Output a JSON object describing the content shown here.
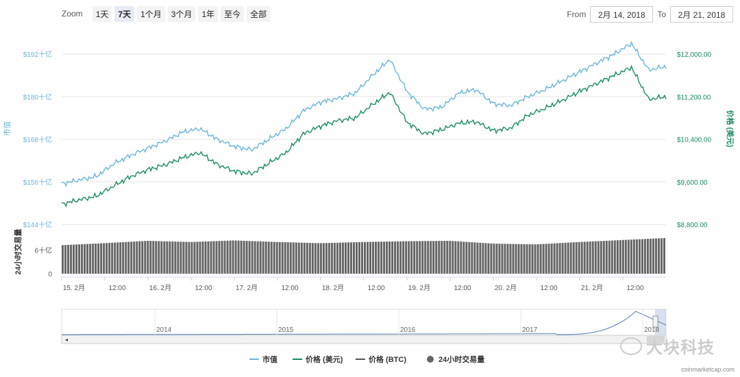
{
  "zoom": {
    "label": "Zoom",
    "buttons": [
      "1天",
      "7天",
      "1个月",
      "3个月",
      "1年",
      "至今",
      "全部"
    ],
    "active_index": 1
  },
  "range": {
    "from_label": "From",
    "from_value": "2月 14, 2018",
    "to_label": "To",
    "to_value": "2月 21, 2018"
  },
  "watermark": {
    "text": "大块科技",
    "icon": "wechat-icon"
  },
  "credit": "coinmarketcap.com",
  "colors": {
    "market_cap": "#6db3d6",
    "price_usd": "#1b8a60",
    "price_btc": "#555555",
    "volume": "#666666",
    "grid": "#e6e6e6",
    "navigator": "#4d79b3"
  },
  "chart_data": {
    "type": "line",
    "title": "",
    "x_ticks": [
      "15. 2月",
      "12:00",
      "16. 2月",
      "12:00",
      "17. 2月",
      "12:00",
      "18. 2月",
      "12:00",
      "19. 2月",
      "12:00",
      "20. 2月",
      "12:00",
      "21. 2月",
      "12:00"
    ],
    "x_range_days": [
      0,
      7
    ],
    "left_axis": {
      "label": "市值",
      "ticks": [
        "$144十亿",
        "$156十亿",
        "$168十亿",
        "$180十亿",
        "$192十亿"
      ],
      "range_billion": [
        144,
        192
      ]
    },
    "right_axis": {
      "label": "价格 (美元)",
      "ticks": [
        "$8,800.00",
        "$9,600.00",
        "$10,400.00",
        "$11,200.00",
        "$12,000.00"
      ],
      "range_usd": [
        8800,
        12000
      ]
    },
    "volume_axis": {
      "label": "24小时交易量",
      "ticks": [
        "0",
        "6十亿"
      ],
      "range_billion": [
        0,
        9.5
      ]
    },
    "series": [
      {
        "name": "市值",
        "axis": "left",
        "unit": "十亿美元",
        "x": [
          0,
          0.2,
          0.4,
          0.6,
          0.8,
          1.0,
          1.2,
          1.4,
          1.6,
          1.8,
          2.0,
          2.2,
          2.4,
          2.6,
          2.8,
          3.0,
          3.2,
          3.4,
          3.6,
          3.8,
          4.0,
          4.2,
          4.4,
          4.6,
          4.8,
          5.0,
          5.2,
          5.4,
          5.6,
          5.8,
          6.0,
          6.2,
          6.4,
          6.6,
          6.8,
          7.0
        ],
        "values": [
          155.5,
          156.5,
          157.5,
          161,
          163.5,
          165.5,
          167.5,
          170,
          171,
          168,
          166,
          165,
          168,
          171,
          176,
          178.5,
          179.5,
          181,
          186,
          190.5,
          181.5,
          176.5,
          177,
          181,
          182,
          178,
          177.5,
          180,
          182,
          184.5,
          187,
          189.5,
          192,
          195,
          187.5,
          188.5
        ]
      },
      {
        "name": "价格 (美元)",
        "axis": "right",
        "unit": "美元",
        "x": [
          0,
          0.2,
          0.4,
          0.6,
          0.8,
          1.0,
          1.2,
          1.4,
          1.6,
          1.8,
          2.0,
          2.2,
          2.4,
          2.6,
          2.8,
          3.0,
          3.2,
          3.4,
          3.6,
          3.8,
          4.0,
          4.2,
          4.4,
          4.6,
          4.8,
          5.0,
          5.2,
          5.4,
          5.6,
          5.8,
          6.0,
          6.2,
          6.4,
          6.6,
          6.8,
          7.0
        ],
        "values": [
          9180,
          9260,
          9330,
          9520,
          9700,
          9830,
          9920,
          10050,
          10150,
          9930,
          9800,
          9750,
          9950,
          10150,
          10500,
          10650,
          10750,
          10800,
          11050,
          11280,
          10720,
          10500,
          10580,
          10700,
          10730,
          10560,
          10610,
          10850,
          10980,
          11130,
          11300,
          11450,
          11600,
          11750,
          11150,
          11200
        ]
      },
      {
        "name": "价格 (BTC)",
        "axis": "none",
        "values": []
      }
    ],
    "volume": {
      "name": "24小时交易量",
      "unit": "十亿美元",
      "x": [
        0,
        0.5,
        1.0,
        1.5,
        2.0,
        2.5,
        3.0,
        3.5,
        4.0,
        4.5,
        5.0,
        5.5,
        6.0,
        6.5,
        7.0
      ],
      "values": [
        7.2,
        7.7,
        8.3,
        8.0,
        8.4,
        8.0,
        7.7,
        8.0,
        8.2,
        8.3,
        7.6,
        7.4,
        8.0,
        8.5,
        9.0
      ]
    },
    "navigator": {
      "years": [
        "2014",
        "2015",
        "2016",
        "2017",
        "2018"
      ]
    },
    "legend": {
      "position": "bottom",
      "items": [
        "市值",
        "价格 (美元)",
        "价格 (BTC)",
        "24小时交易量"
      ]
    },
    "grid": true
  }
}
